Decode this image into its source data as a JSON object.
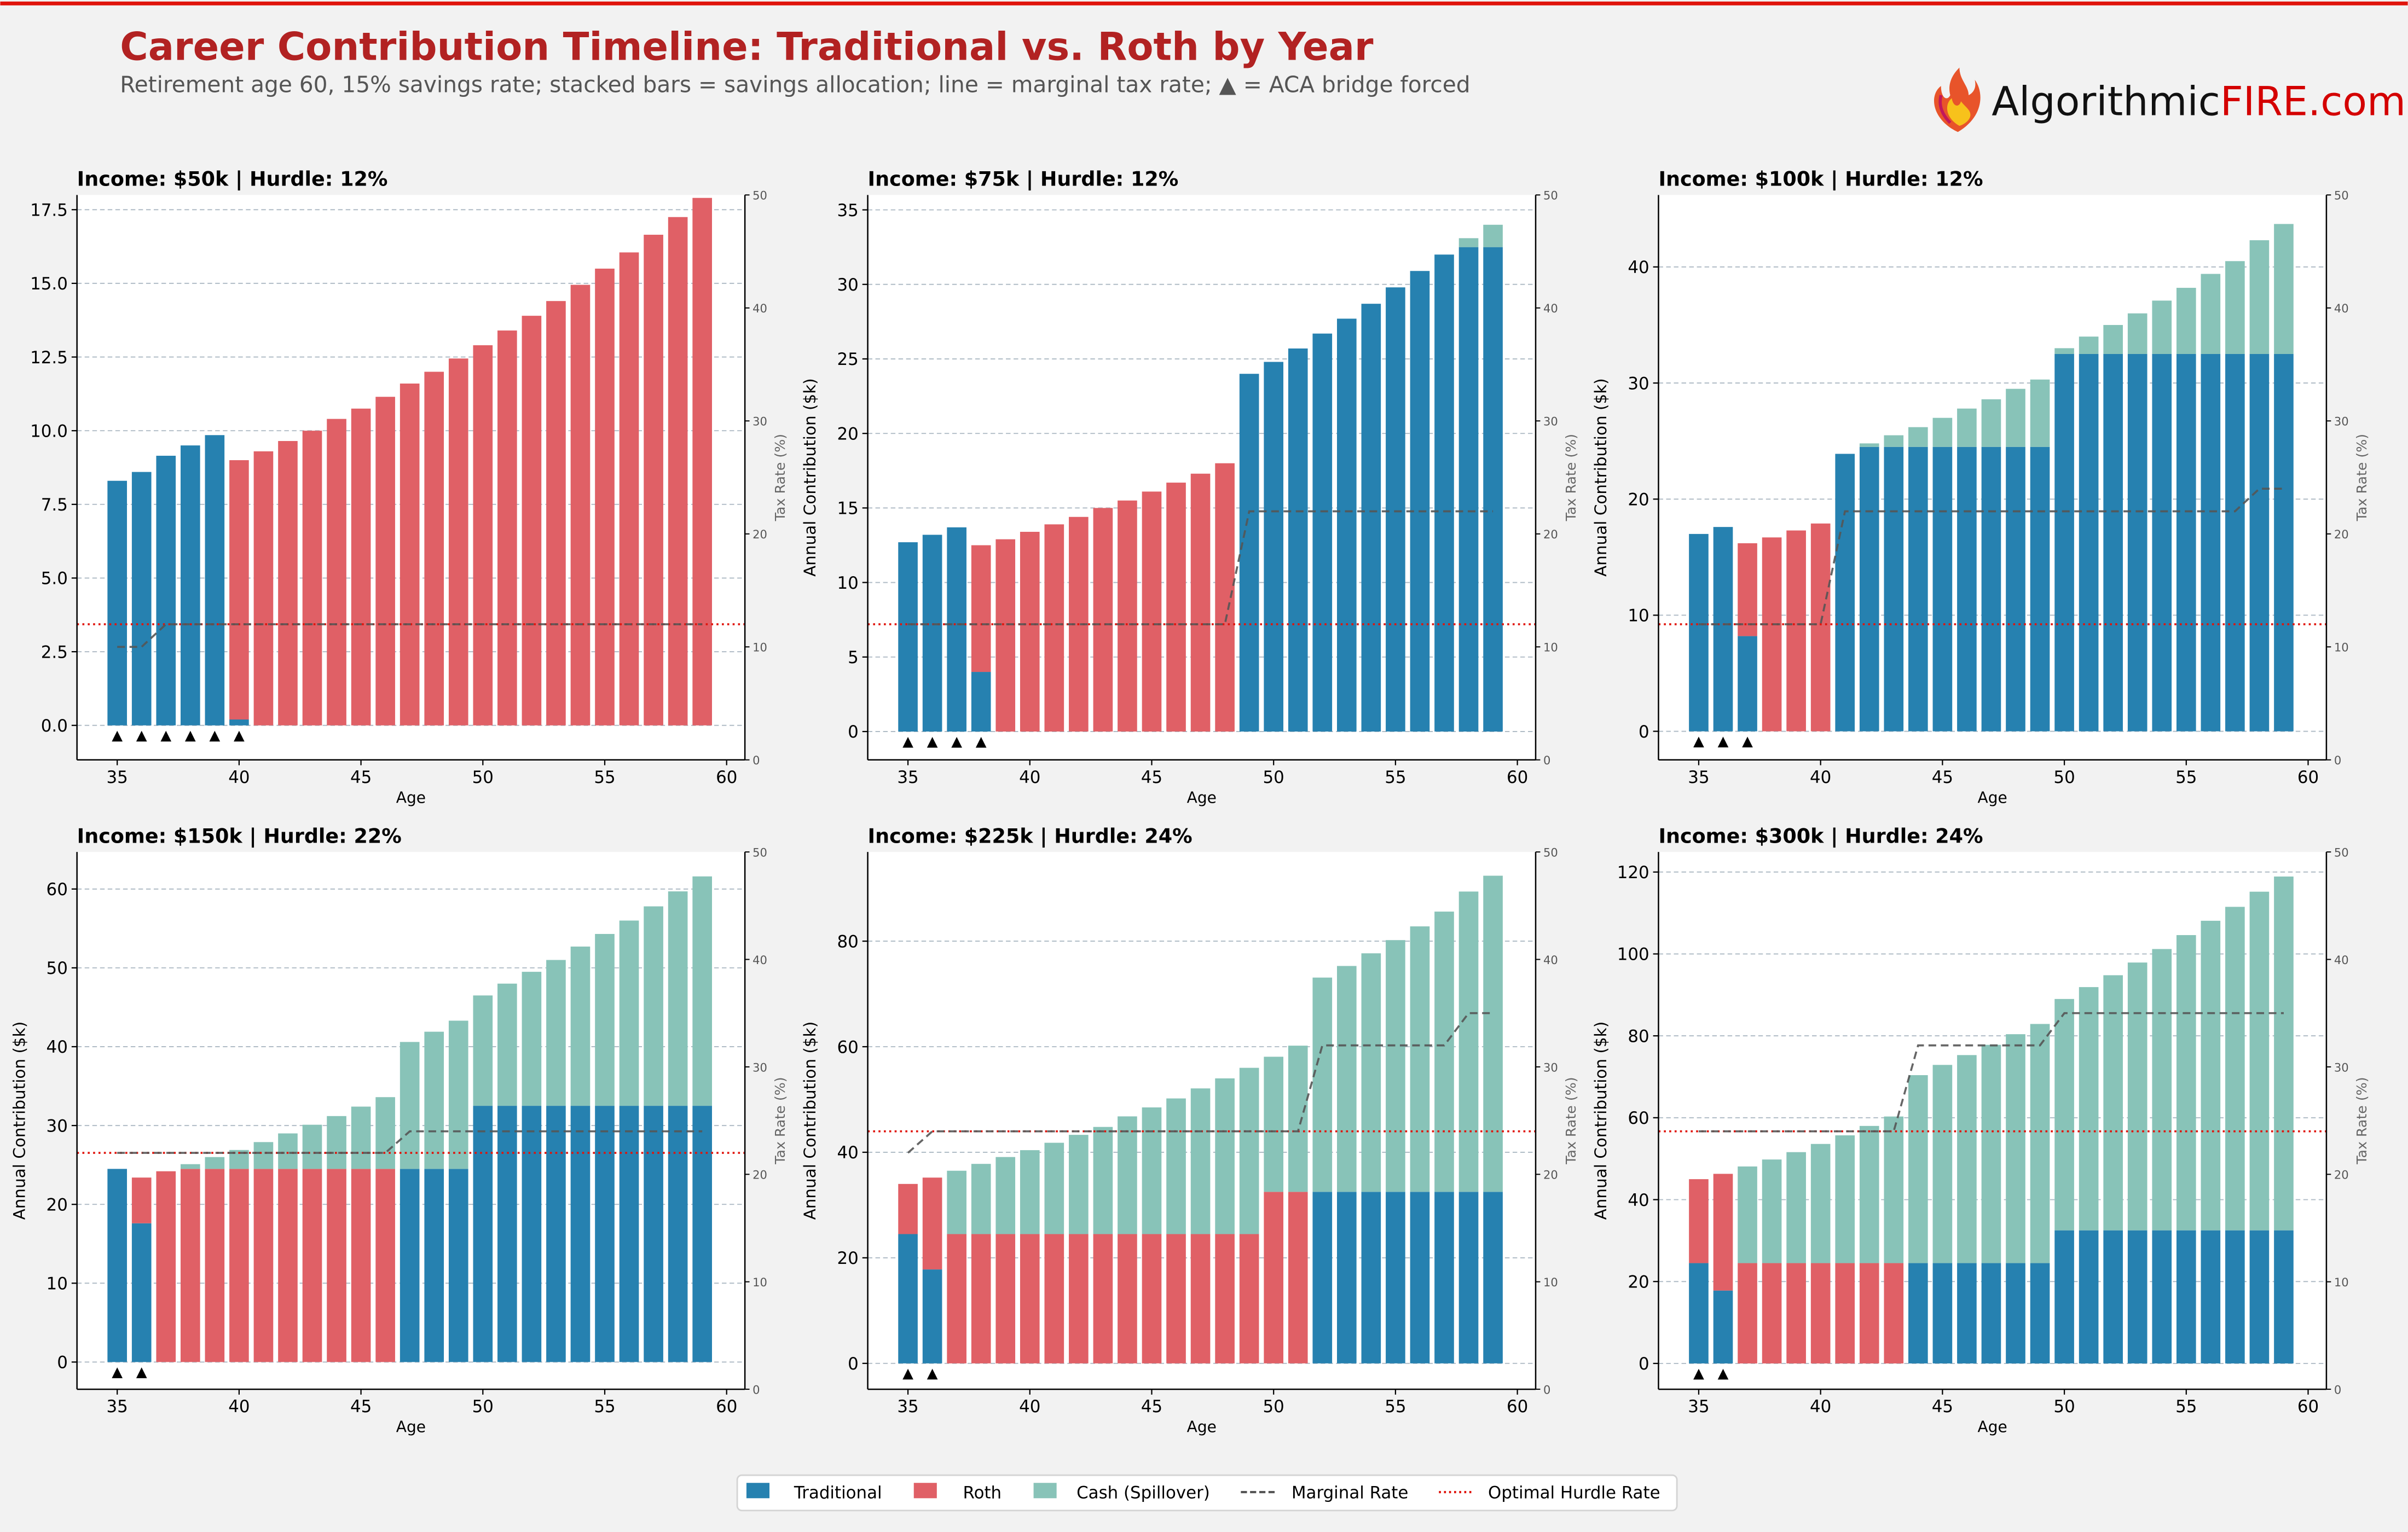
{
  "header": {
    "title": "Career Contribution Timeline: Traditional vs. Roth by Year",
    "subtitle": "Retirement age 60, 15% savings rate; stacked bars = savings allocation; line = marginal tax rate; ▲ = ACA bridge forced",
    "logo_text_1": "Algorithmic",
    "logo_text_2": "FIRE.com",
    "logo_icon": "flame-icon"
  },
  "colors": {
    "traditional": "#2681b0",
    "roth": "#e06066",
    "cash": "#88c3b8",
    "marginal": "#555555",
    "hurdle": "#e0140c",
    "title": "#b22222",
    "accent_bar": "#e0140c"
  },
  "legend": {
    "placement": "bottom-center",
    "items": [
      "Traditional",
      "Roth",
      "Cash (Spillover)",
      "Marginal Rate",
      "Optimal Hurdle Rate"
    ]
  },
  "chart_data": [
    {
      "type": "bar",
      "title": "Income: $50k  |  Hurdle: 12%",
      "xlabel": "Age",
      "ylabel": "",
      "y2label": "Tax Rate (%)",
      "x": [
        35,
        36,
        37,
        38,
        39,
        40,
        41,
        42,
        43,
        44,
        45,
        46,
        47,
        48,
        49,
        50,
        51,
        52,
        53,
        54,
        55,
        56,
        57,
        58,
        59
      ],
      "xticks": [
        35,
        40,
        45,
        50,
        55,
        60
      ],
      "yticks": [
        "0.0",
        "2.5",
        "5.0",
        "7.5",
        "10.0",
        "12.5",
        "15.0",
        "17.5"
      ],
      "ylim": [
        -1.17,
        18.0
      ],
      "y2lim": [
        0,
        50
      ],
      "y2ticks": [
        0,
        10,
        20,
        30,
        40,
        50
      ],
      "grid": true,
      "series": [
        {
          "name": "Traditional",
          "values": [
            8.3,
            8.6,
            9.15,
            9.5,
            9.85,
            0.2,
            0,
            0,
            0,
            0,
            0,
            0,
            0,
            0,
            0,
            0,
            0,
            0,
            0,
            0,
            0,
            0,
            0,
            0,
            0
          ]
        },
        {
          "name": "Roth",
          "values": [
            0,
            0,
            0,
            0,
            0,
            8.8,
            9.3,
            9.65,
            10.0,
            10.4,
            10.75,
            11.15,
            11.6,
            12.0,
            12.45,
            12.9,
            13.4,
            13.9,
            14.4,
            14.95,
            15.5,
            16.05,
            16.65,
            17.25,
            17.9
          ]
        },
        {
          "name": "Cash (Spillover)",
          "values": [
            0,
            0,
            0,
            0,
            0,
            0,
            0,
            0,
            0,
            0,
            0,
            0,
            0,
            0,
            0,
            0,
            0,
            0,
            0,
            0,
            0,
            0,
            0,
            0,
            0
          ]
        }
      ],
      "marginal_rate": [
        10,
        10,
        12,
        12,
        12,
        12,
        12,
        12,
        12,
        12,
        12,
        12,
        12,
        12,
        12,
        12,
        12,
        12,
        12,
        12,
        12,
        12,
        12,
        12,
        12
      ],
      "hurdle_rate": 12,
      "aca_bridge_ages": [
        35,
        36,
        37,
        38,
        39,
        40
      ]
    },
    {
      "type": "bar",
      "title": "Income: $75k  |  Hurdle: 12%",
      "xlabel": "Age",
      "ylabel": "Annual Contribution ($k)",
      "y2label": "Tax Rate (%)",
      "x": [
        35,
        36,
        37,
        38,
        39,
        40,
        41,
        42,
        43,
        44,
        45,
        46,
        47,
        48,
        49,
        50,
        51,
        52,
        53,
        54,
        55,
        56,
        57,
        58,
        59
      ],
      "xticks": [
        35,
        40,
        45,
        50,
        55,
        60
      ],
      "yticks": [
        "0",
        "5",
        "10",
        "15",
        "20",
        "25",
        "30",
        "35"
      ],
      "ylim": [
        -1.9,
        36.0
      ],
      "y2lim": [
        0,
        50
      ],
      "y2ticks": [
        0,
        10,
        20,
        30,
        40,
        50
      ],
      "grid": true,
      "series": [
        {
          "name": "Traditional",
          "values": [
            12.7,
            13.2,
            13.7,
            4.0,
            0,
            0,
            0,
            0,
            0,
            0,
            0,
            0,
            0,
            0,
            24.0,
            24.8,
            25.7,
            26.7,
            27.7,
            28.7,
            29.8,
            30.9,
            32.0,
            32.5,
            32.5
          ]
        },
        {
          "name": "Roth",
          "values": [
            0,
            0,
            0,
            8.5,
            12.9,
            13.4,
            13.9,
            14.4,
            15.0,
            15.5,
            16.1,
            16.7,
            17.3,
            18.0,
            0,
            0,
            0,
            0,
            0,
            0,
            0,
            0,
            0,
            0,
            0
          ]
        },
        {
          "name": "Cash (Spillover)",
          "values": [
            0,
            0,
            0,
            0,
            0,
            0,
            0,
            0,
            0,
            0,
            0,
            0,
            0,
            0,
            0,
            0,
            0,
            0,
            0,
            0,
            0,
            0,
            0,
            0.6,
            1.5
          ]
        }
      ],
      "marginal_rate": [
        12,
        12,
        12,
        12,
        12,
        12,
        12,
        12,
        12,
        12,
        12,
        12,
        12,
        12,
        22,
        22,
        22,
        22,
        22,
        22,
        22,
        22,
        22,
        22,
        22
      ],
      "hurdle_rate": 12,
      "aca_bridge_ages": [
        35,
        36,
        37,
        38
      ]
    },
    {
      "type": "bar",
      "title": "Income: $100k  |  Hurdle: 12%",
      "xlabel": "Age",
      "ylabel": "Annual Contribution ($k)",
      "y2label": "Tax Rate (%)",
      "x": [
        35,
        36,
        37,
        38,
        39,
        40,
        41,
        42,
        43,
        44,
        45,
        46,
        47,
        48,
        49,
        50,
        51,
        52,
        53,
        54,
        55,
        56,
        57,
        58,
        59
      ],
      "xticks": [
        35,
        40,
        45,
        50,
        55,
        60
      ],
      "yticks": [
        "0",
        "10",
        "20",
        "30",
        "40"
      ],
      "ylim": [
        -2.46,
        46.2
      ],
      "y2lim": [
        0,
        50
      ],
      "y2ticks": [
        0,
        10,
        20,
        30,
        40,
        50
      ],
      "grid": true,
      "series": [
        {
          "name": "Traditional",
          "values": [
            17.0,
            17.6,
            8.2,
            0,
            0,
            0,
            23.9,
            24.5,
            24.5,
            24.5,
            24.5,
            24.5,
            24.5,
            24.5,
            24.5,
            32.5,
            32.5,
            32.5,
            32.5,
            32.5,
            32.5,
            32.5,
            32.5,
            32.5,
            32.5
          ]
        },
        {
          "name": "Roth",
          "values": [
            0,
            0,
            8.0,
            16.7,
            17.3,
            17.9,
            0,
            0,
            0,
            0,
            0,
            0,
            0,
            0,
            0,
            0,
            0,
            0,
            0,
            0,
            0,
            0,
            0,
            0,
            0
          ]
        },
        {
          "name": "Cash (Spillover)",
          "values": [
            0,
            0,
            0,
            0,
            0,
            0,
            0,
            0.3,
            1.0,
            1.7,
            2.5,
            3.3,
            4.1,
            5.0,
            5.8,
            0.5,
            1.5,
            2.5,
            3.5,
            4.6,
            5.7,
            6.9,
            8.0,
            9.8,
            11.2
          ]
        }
      ],
      "marginal_rate": [
        12,
        12,
        12,
        12,
        12,
        12,
        22,
        22,
        22,
        22,
        22,
        22,
        22,
        22,
        22,
        22,
        22,
        22,
        22,
        22,
        22,
        22,
        22,
        24,
        24
      ],
      "hurdle_rate": 12,
      "aca_bridge_ages": [
        35,
        36,
        37
      ]
    },
    {
      "type": "bar",
      "title": "Income: $150k  |  Hurdle: 22%",
      "xlabel": "Age",
      "ylabel": "Annual Contribution ($k)",
      "y2label": "Tax Rate (%)",
      "x": [
        35,
        36,
        37,
        38,
        39,
        40,
        41,
        42,
        43,
        44,
        45,
        46,
        47,
        48,
        49,
        50,
        51,
        52,
        53,
        54,
        55,
        56,
        57,
        58,
        59
      ],
      "xticks": [
        35,
        40,
        45,
        50,
        55,
        60
      ],
      "yticks": [
        "0",
        "10",
        "20",
        "30",
        "40",
        "50",
        "60"
      ],
      "ylim": [
        -3.45,
        64.7
      ],
      "y2lim": [
        0,
        50
      ],
      "y2ticks": [
        0,
        10,
        20,
        30,
        40,
        50
      ],
      "grid": true,
      "series": [
        {
          "name": "Traditional",
          "values": [
            24.5,
            17.6,
            0,
            0,
            0,
            0,
            0,
            0,
            0,
            0,
            0,
            0,
            24.5,
            24.5,
            24.5,
            32.5,
            32.5,
            32.5,
            32.5,
            32.5,
            32.5,
            32.5,
            32.5,
            32.5,
            32.5
          ]
        },
        {
          "name": "Roth",
          "values": [
            0,
            5.8,
            24.2,
            24.5,
            24.5,
            24.5,
            24.5,
            24.5,
            24.5,
            24.5,
            24.5,
            24.5,
            0,
            0,
            0,
            0,
            0,
            0,
            0,
            0,
            0,
            0,
            0,
            0,
            0
          ]
        },
        {
          "name": "Cash (Spillover)",
          "values": [
            0,
            0,
            0,
            0.6,
            1.5,
            2.4,
            3.4,
            4.5,
            5.6,
            6.7,
            7.9,
            9.1,
            16.1,
            17.4,
            18.8,
            14.0,
            15.5,
            17.0,
            18.5,
            20.2,
            21.8,
            23.5,
            25.3,
            27.2,
            29.1
          ]
        }
      ],
      "marginal_rate": [
        22,
        22,
        22,
        22,
        22,
        22,
        22,
        22,
        22,
        22,
        22,
        22,
        24,
        24,
        24,
        24,
        24,
        24,
        24,
        24,
        24,
        24,
        24,
        24,
        24
      ],
      "hurdle_rate": 22,
      "aca_bridge_ages": [
        35,
        36
      ]
    },
    {
      "type": "bar",
      "title": "Income: $225k  |  Hurdle: 24%",
      "xlabel": "Age",
      "ylabel": "Annual Contribution ($k)",
      "y2label": "Tax Rate (%)",
      "x": [
        35,
        36,
        37,
        38,
        39,
        40,
        41,
        42,
        43,
        44,
        45,
        46,
        47,
        48,
        49,
        50,
        51,
        52,
        53,
        54,
        55,
        56,
        57,
        58,
        59
      ],
      "xticks": [
        35,
        40,
        45,
        50,
        55,
        60
      ],
      "yticks": [
        "0",
        "20",
        "40",
        "60",
        "80"
      ],
      "ylim": [
        -4.9,
        96.9
      ],
      "y2lim": [
        0,
        50
      ],
      "y2ticks": [
        0,
        10,
        20,
        30,
        40,
        50
      ],
      "grid": true,
      "series": [
        {
          "name": "Traditional",
          "values": [
            24.5,
            17.8,
            0,
            0,
            0,
            0,
            0,
            0,
            0,
            0,
            0,
            0,
            0,
            0,
            0,
            0,
            0,
            32.5,
            32.5,
            32.5,
            32.5,
            32.5,
            32.5,
            32.5,
            32.5
          ]
        },
        {
          "name": "Roth",
          "values": [
            9.5,
            17.4,
            24.5,
            24.5,
            24.5,
            24.5,
            24.5,
            24.5,
            24.5,
            24.5,
            24.5,
            24.5,
            24.5,
            24.5,
            24.5,
            32.5,
            32.5,
            0,
            0,
            0,
            0,
            0,
            0,
            0,
            0
          ]
        },
        {
          "name": "Cash (Spillover)",
          "values": [
            0,
            0,
            12.0,
            13.3,
            14.6,
            15.9,
            17.3,
            18.8,
            20.3,
            22.3,
            24.0,
            25.7,
            27.6,
            29.5,
            31.5,
            25.6,
            27.7,
            40.6,
            42.8,
            45.2,
            47.7,
            50.3,
            53.1,
            56.9,
            59.9
          ]
        }
      ],
      "marginal_rate": [
        22,
        24,
        24,
        24,
        24,
        24,
        24,
        24,
        24,
        24,
        24,
        24,
        24,
        24,
        24,
        24,
        24,
        32,
        32,
        32,
        32,
        32,
        32,
        35,
        35
      ],
      "hurdle_rate": 24,
      "aca_bridge_ages": [
        35,
        36
      ]
    },
    {
      "type": "bar",
      "title": "Income: $300k  |  Hurdle: 24%",
      "xlabel": "Age",
      "ylabel": "Annual Contribution ($k)",
      "y2label": "Tax Rate (%)",
      "x": [
        35,
        36,
        37,
        38,
        39,
        40,
        41,
        42,
        43,
        44,
        45,
        46,
        47,
        48,
        49,
        50,
        51,
        52,
        53,
        54,
        55,
        56,
        57,
        58,
        59
      ],
      "xticks": [
        35,
        40,
        45,
        50,
        55,
        60
      ],
      "yticks": [
        "0",
        "20",
        "40",
        "60",
        "80",
        "100",
        "120"
      ],
      "ylim": [
        -6.3,
        124.9
      ],
      "y2lim": [
        0,
        50
      ],
      "y2ticks": [
        0,
        10,
        20,
        30,
        40,
        50
      ],
      "grid": true,
      "series": [
        {
          "name": "Traditional",
          "values": [
            24.5,
            17.8,
            0,
            0,
            0,
            0,
            0,
            0,
            0,
            24.5,
            24.5,
            24.5,
            24.5,
            24.5,
            24.5,
            32.5,
            32.5,
            32.5,
            32.5,
            32.5,
            32.5,
            32.5,
            32.5,
            32.5,
            32.5
          ]
        },
        {
          "name": "Roth",
          "values": [
            20.5,
            28.5,
            24.5,
            24.5,
            24.5,
            24.5,
            24.5,
            24.5,
            24.5,
            0,
            0,
            0,
            0,
            0,
            0,
            0,
            0,
            0,
            0,
            0,
            0,
            0,
            0,
            0,
            0
          ]
        },
        {
          "name": "Cash (Spillover)",
          "values": [
            0,
            0,
            23.6,
            25.3,
            27.1,
            29.1,
            31.2,
            33.5,
            35.8,
            45.9,
            48.4,
            50.8,
            53.3,
            55.9,
            58.4,
            56.5,
            59.4,
            62.3,
            65.4,
            68.7,
            72.1,
            75.6,
            79.0,
            82.7,
            86.4
          ]
        }
      ],
      "marginal_rate": [
        24,
        24,
        24,
        24,
        24,
        24,
        24,
        24,
        24,
        32,
        32,
        32,
        32,
        32,
        32,
        35,
        35,
        35,
        35,
        35,
        35,
        35,
        35,
        35,
        35
      ],
      "hurdle_rate": 24,
      "aca_bridge_ages": [
        35,
        36
      ]
    }
  ]
}
